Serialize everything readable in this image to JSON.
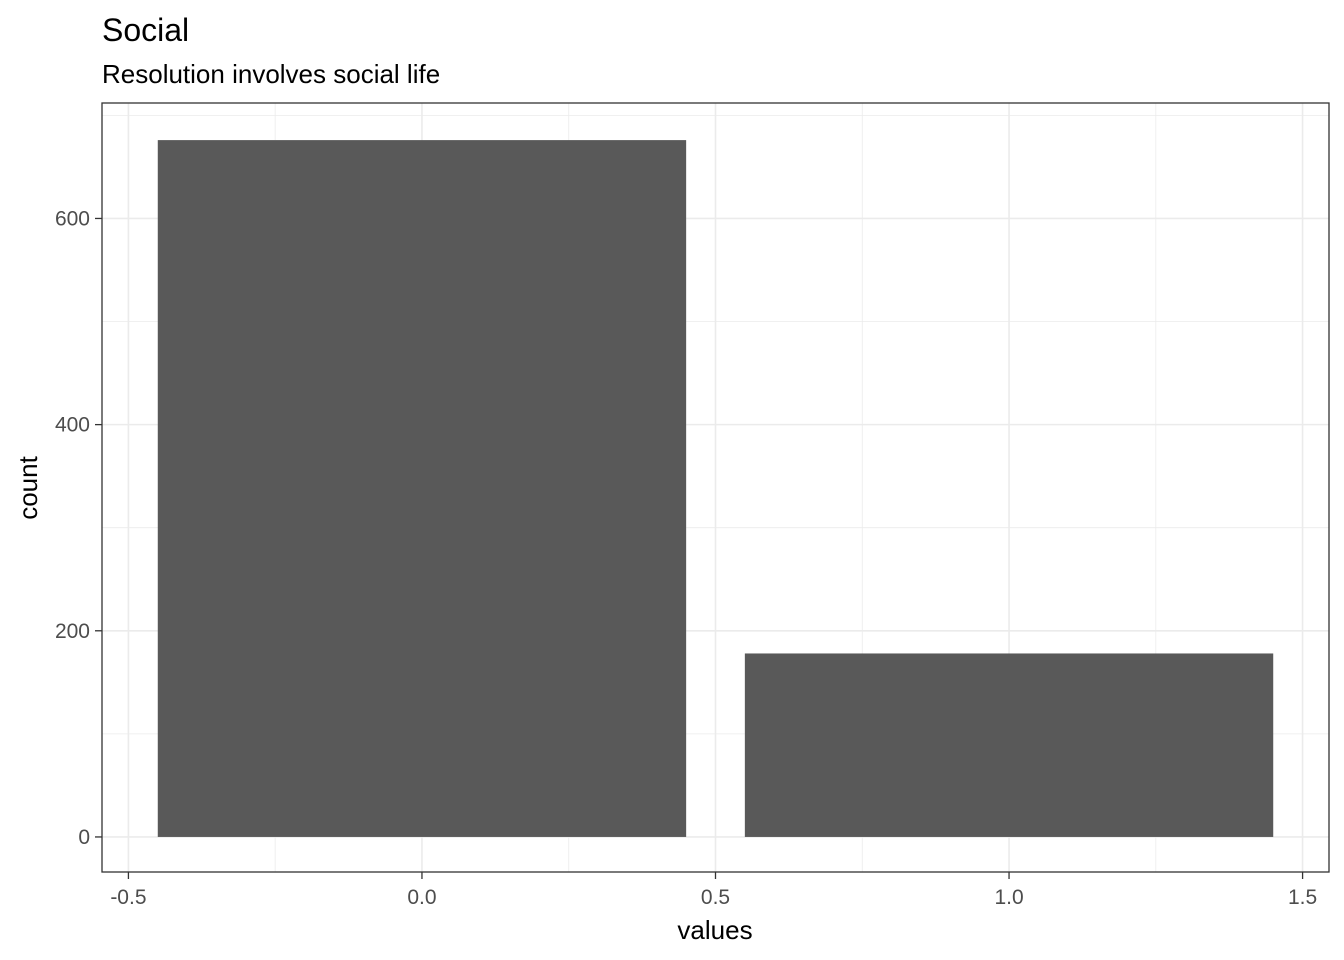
{
  "chart_data": {
    "type": "bar",
    "title": "Social",
    "subtitle": "Resolution involves social life",
    "xlabel": "values",
    "ylabel": "count",
    "categories": [
      0,
      1
    ],
    "x": [
      0,
      1
    ],
    "values": [
      676,
      178
    ],
    "bar_width": 0.9,
    "xlim": [
      -0.545,
      1.545
    ],
    "ylim": [
      -34,
      712
    ],
    "x_ticks": [
      -0.5,
      0.0,
      0.5,
      1.0,
      1.5
    ],
    "x_tick_labels": [
      "-0.5",
      "0.0",
      "0.5",
      "1.0",
      "1.5"
    ],
    "y_ticks": [
      0,
      200,
      400,
      600
    ],
    "y_tick_labels": [
      "0",
      "200",
      "400",
      "600"
    ],
    "grid": true,
    "bar_color": "#595959",
    "grid_color": "#ebebeb",
    "panel_border_color": "#333333"
  }
}
